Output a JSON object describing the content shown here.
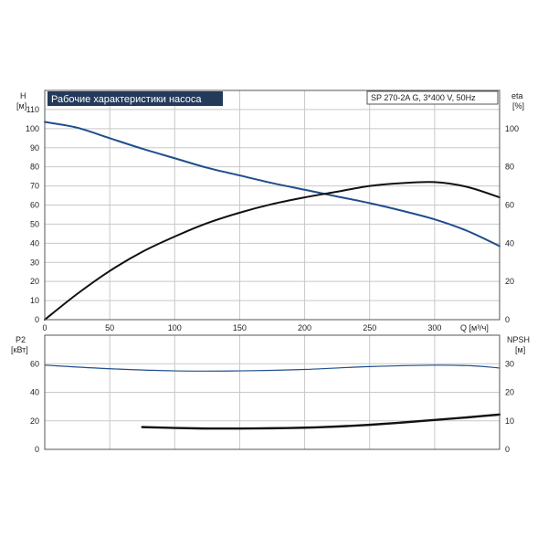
{
  "chart_data": [
    {
      "type": "line",
      "title": "Рабочие характеристики насоса",
      "model": "SP 270-2A G, 3*400 V, 50Hz",
      "xlabel": "Q [м³/ч]",
      "xlim": [
        0,
        350
      ],
      "x_ticks": [
        0,
        50,
        100,
        150,
        200,
        250,
        300
      ],
      "y_left_label": [
        "H",
        "[м]"
      ],
      "y_left_lim": [
        0,
        120
      ],
      "y_left_ticks": [
        0,
        10,
        20,
        30,
        40,
        50,
        60,
        70,
        80,
        90,
        100,
        110
      ],
      "y_right_label": [
        "eta",
        "[%]"
      ],
      "y_right_lim": [
        0,
        120
      ],
      "y_right_ticks": [
        0,
        20,
        40,
        60,
        80,
        100
      ],
      "grid": true,
      "series": [
        {
          "axis": "left",
          "color": "#1f4e8c",
          "x": [
            0,
            25,
            50,
            75,
            100,
            125,
            150,
            175,
            200,
            225,
            250,
            275,
            300,
            325,
            350
          ],
          "values": [
            103.5,
            100.5,
            95,
            89.5,
            84.5,
            79.5,
            75.5,
            71.5,
            68,
            64.5,
            61,
            57,
            52.5,
            46.5,
            38.5
          ]
        },
        {
          "axis": "right",
          "color": "#111111",
          "x": [
            0,
            25,
            50,
            75,
            100,
            125,
            150,
            175,
            200,
            225,
            250,
            275,
            300,
            325,
            350
          ],
          "values": [
            0,
            13.5,
            25.5,
            35.5,
            43.5,
            50.5,
            56,
            60.5,
            64,
            67,
            70,
            71.5,
            72,
            69.5,
            64
          ]
        }
      ]
    },
    {
      "type": "line",
      "xlim": [
        0,
        350
      ],
      "y_left_label": [
        "P2",
        "[кВт]"
      ],
      "y_left_lim": [
        0,
        80
      ],
      "y_left_ticks": [
        0,
        20,
        40,
        60
      ],
      "y_right_label": [
        "NPSH",
        "[м]"
      ],
      "y_right_lim": [
        0,
        40
      ],
      "y_right_ticks": [
        0,
        10,
        20,
        30
      ],
      "grid": true,
      "series": [
        {
          "axis": "left",
          "color": "#1f4e8c",
          "x": [
            0,
            50,
            100,
            150,
            200,
            250,
            300,
            330,
            350
          ],
          "values": [
            59,
            56.5,
            55,
            55,
            56,
            58,
            59,
            58.5,
            57
          ]
        },
        {
          "axis": "right",
          "color": "#111111",
          "x": [
            75,
            100,
            125,
            150,
            175,
            200,
            225,
            250,
            275,
            300,
            325,
            350
          ],
          "values": [
            7.8,
            7.5,
            7.3,
            7.3,
            7.4,
            7.6,
            8,
            8.6,
            9.4,
            10.3,
            11.2,
            12.2
          ]
        }
      ]
    }
  ]
}
